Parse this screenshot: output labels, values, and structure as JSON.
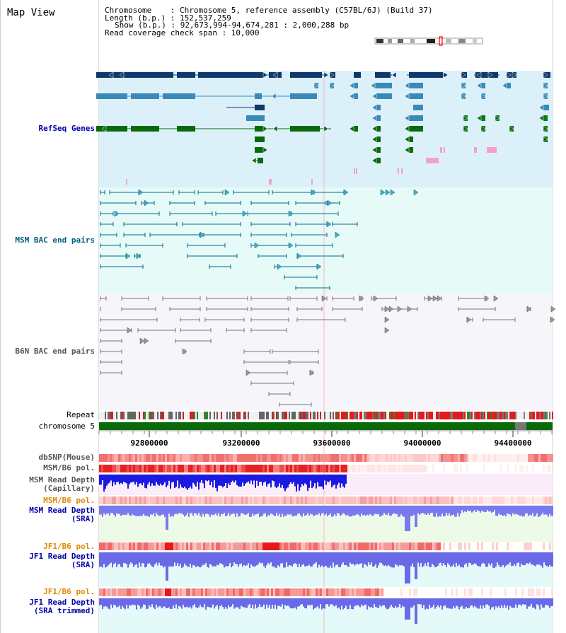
{
  "page_title": "Map View",
  "header": {
    "lines": [
      "Chromosome    : Chromosome 5, reference assembly (C57BL/6J) (Build 37)",
      "Length (b.p.) : 152,537,259",
      "Show (b.p.) : 92,673,994-94,674,281 : 2,000,288 bp",
      "Read coverage check span : 10,000"
    ]
  },
  "tracks": {
    "refseq": "RefSeq Genes",
    "msm_bac": "MSM BAC end pairs",
    "b6n_bac": "B6N BAC end pairs",
    "repeat": "Repeat",
    "chromosome": "chromosome 5",
    "dbsnp": "dbSNP(Mouse)",
    "msm_b6_pol_1": "MSM/B6 pol.",
    "msm_depth_cap_1": "MSM Read Depth",
    "msm_depth_cap_2": "(Capillary)",
    "msm_b6_pol_2": "MSM/B6 pol.",
    "msm_depth_sra_1": "MSM Read Depth",
    "msm_depth_sra_2": "(SRA)",
    "jf1_b6_pol_1": "JF1/B6 pol.",
    "jf1_depth_sra_1": "JF1 Read Depth",
    "jf1_depth_sra_2": "(SRA)",
    "jf1_b6_pol_2": "JF1/B6 pol.",
    "jf1_depth_trim_1": "JF1 Read Depth",
    "jf1_depth_trim_2": "(SRA trimmed)"
  },
  "axis": {
    "ticks": [
      "92800000",
      "93200000",
      "93600000",
      "94000000",
      "94400000"
    ]
  },
  "colors": {
    "refseq_label": "#0000aa",
    "msm_label": "#006080",
    "b6n_label": "#555555",
    "orange_label": "#e08a00",
    "blue_label": "#0000aa"
  }
}
